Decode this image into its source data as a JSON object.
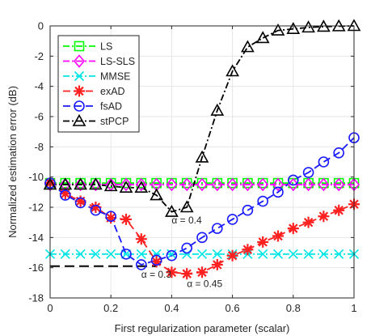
{
  "chart_data": {
    "type": "line",
    "title": "",
    "xlabel": "First regularization parameter (scalar)",
    "ylabel": "Normalized estimation error (dB)",
    "xlim": [
      0,
      1
    ],
    "ylim": [
      -18,
      0
    ],
    "xticks": [
      0,
      0.2,
      0.4,
      0.6,
      0.8,
      1
    ],
    "xtick_labels": [
      "0",
      "0.2",
      "0.4",
      "0.6",
      "0.8",
      "1"
    ],
    "yticks": [
      0,
      -2,
      -4,
      -6,
      -8,
      -10,
      -12,
      -14,
      -16,
      -18
    ],
    "ytick_labels": [
      "0",
      "-2",
      "-4",
      "-6",
      "-8",
      "-10",
      "-12",
      "-14",
      "-16",
      "-18"
    ],
    "grid": true,
    "legend_position": "top-left",
    "x": [
      0,
      0.05,
      0.1,
      0.15,
      0.2,
      0.25,
      0.3,
      0.35,
      0.4,
      0.45,
      0.5,
      0.55,
      0.6,
      0.65,
      0.7,
      0.75,
      0.8,
      0.85,
      0.9,
      0.95,
      1
    ],
    "series": [
      {
        "name": "LS",
        "color": "#00ff00",
        "dash": "dash-dot",
        "marker": "square",
        "values": [
          -10.4,
          -10.4,
          -10.4,
          -10.4,
          -10.4,
          -10.4,
          -10.4,
          -10.4,
          -10.4,
          -10.4,
          -10.4,
          -10.4,
          -10.4,
          -10.4,
          -10.4,
          -10.4,
          -10.4,
          -10.4,
          -10.4,
          -10.4,
          -10.4
        ]
      },
      {
        "name": "LS-SLS",
        "color": "#ff00ff",
        "dash": "dash-dot",
        "marker": "diamond",
        "values": [
          -10.5,
          -10.5,
          -10.5,
          -10.5,
          -10.5,
          -10.5,
          -10.5,
          -10.5,
          -10.5,
          -10.5,
          -10.5,
          -10.5,
          -10.5,
          -10.5,
          -10.5,
          -10.5,
          -10.5,
          -10.5,
          -10.5,
          -10.5,
          -10.5
        ]
      },
      {
        "name": "MMSE",
        "color": "#00e5e5",
        "dash": "dash-dot",
        "marker": "x",
        "values": [
          -15.1,
          -15.1,
          -15.1,
          -15.1,
          -15.1,
          -15.1,
          -15.1,
          -15.1,
          -15.1,
          -15.1,
          -15.1,
          -15.1,
          -15.1,
          -15.1,
          -15.1,
          -15.1,
          -15.1,
          -15.1,
          -15.1,
          -15.1,
          -15.1
        ]
      },
      {
        "name": "exAD",
        "color": "#ff2020",
        "dash": "dash",
        "marker": "asterisk",
        "values": [
          -10.4,
          -11.1,
          -11.6,
          -12.0,
          -12.7,
          -12.8,
          -14.1,
          -15.6,
          -16.3,
          -16.4,
          -16.3,
          -15.8,
          -15.2,
          -14.8,
          -14.3,
          -13.9,
          -13.4,
          -13.0,
          -12.6,
          -12.2,
          -11.8
        ]
      },
      {
        "name": "fsAD",
        "color": "#1a1aff",
        "dash": "dash",
        "marker": "circle",
        "values": [
          -10.4,
          -11.2,
          -11.7,
          -12.2,
          -12.6,
          -15.1,
          -15.8,
          -15.5,
          -15.2,
          -14.7,
          -14.0,
          -13.4,
          -12.8,
          -12.2,
          -11.6,
          -11.0,
          -10.2,
          -9.7,
          -9.0,
          -8.4,
          -7.4
        ]
      },
      {
        "name": "stPCP",
        "color": "#000000",
        "dash": "dash-dot",
        "marker": "triangle",
        "values": [
          -10.5,
          -10.5,
          -10.5,
          -10.5,
          -10.6,
          -10.7,
          -10.7,
          -11.2,
          -12.3,
          -12.0,
          -8.7,
          -5.6,
          -3.0,
          -1.4,
          -0.8,
          -0.3,
          -0.2,
          -0.1,
          -0.05,
          -0.02,
          0
        ]
      }
    ],
    "optimum_line": {
      "color": "#000000",
      "x": [
        0,
        0.35
      ],
      "y": [
        -15.9,
        -15.9
      ]
    },
    "annotations": [
      {
        "text": "α = 0.4",
        "x": 0.4,
        "y": -12.8
      },
      {
        "text": "α = 0.3",
        "x": 0.3,
        "y": -16.4
      },
      {
        "text": "α = 0.45",
        "x": 0.45,
        "y": -17.0
      }
    ]
  }
}
